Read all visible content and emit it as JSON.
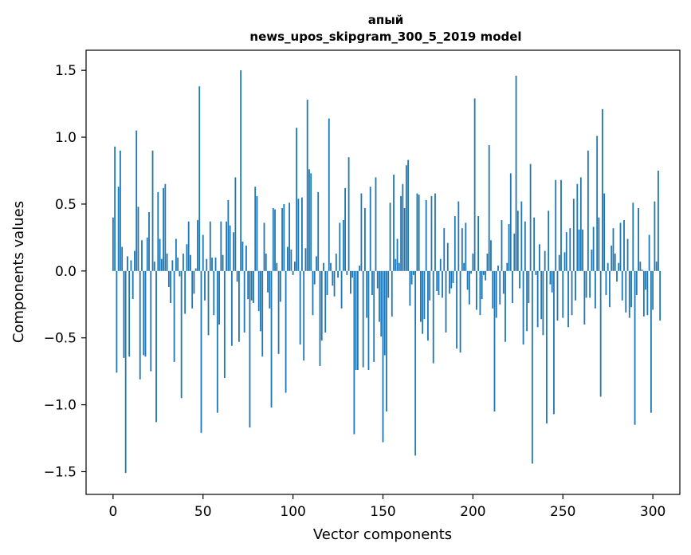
{
  "chart_data": {
    "type": "bar",
    "title": "апый",
    "subtitle": "news_upos_skipgram_300_5_2019 model",
    "xlabel": "Vector components",
    "ylabel": "Components values",
    "xlim": [
      -15,
      315
    ],
    "ylim": [
      -1.67,
      1.65
    ],
    "xticks": [
      0,
      50,
      100,
      150,
      200,
      250,
      300
    ],
    "xtick_labels": [
      "0",
      "50",
      "100",
      "150",
      "200",
      "250",
      "300"
    ],
    "yticks": [
      -1.5,
      -1.0,
      -0.5,
      0.0,
      0.5,
      1.0,
      1.5
    ],
    "ytick_labels": [
      "−1.5",
      "−1.0",
      "−0.5",
      "0.0",
      "0.5",
      "1.0",
      "1.5"
    ],
    "grid": false,
    "bar_color": "#1f77b4",
    "x_start": 0,
    "values": [
      0.4,
      0.93,
      -0.76,
      0.63,
      0.9,
      0.18,
      -0.65,
      -1.51,
      0.11,
      -0.64,
      0.08,
      -0.21,
      0.15,
      1.05,
      0.48,
      -0.81,
      0.23,
      -0.63,
      -0.64,
      0.25,
      0.44,
      -0.75,
      0.9,
      0.07,
      -1.13,
      0.59,
      0.24,
      0.09,
      0.62,
      0.65,
      0.13,
      -0.12,
      -0.24,
      0.08,
      -0.68,
      0.24,
      0.1,
      -0.04,
      -0.95,
      0.13,
      -0.32,
      0.2,
      0.37,
      0.12,
      -0.28,
      -0.17,
      0.02,
      0.38,
      1.38,
      -1.21,
      0.27,
      -0.22,
      0.09,
      -0.48,
      0.37,
      0.1,
      -0.33,
      0.1,
      -1.06,
      -0.4,
      0.37,
      0.12,
      -0.8,
      0.37,
      0.53,
      0.34,
      -0.56,
      0.29,
      0.7,
      -0.08,
      -0.53,
      1.5,
      0.22,
      -0.46,
      0.19,
      -0.21,
      -1.17,
      -0.22,
      -0.24,
      0.63,
      0.56,
      -0.3,
      -0.45,
      -0.64,
      0.36,
      0.13,
      -0.16,
      -0.28,
      -1.02,
      0.47,
      0.46,
      0.06,
      -0.62,
      -0.23,
      0.47,
      0.5,
      -0.91,
      0.18,
      0.51,
      0.16,
      -0.03,
      0.07,
      1.07,
      0.54,
      -0.55,
      0.55,
      -0.67,
      0.17,
      1.28,
      0.76,
      0.73,
      -0.33,
      -0.1,
      0.11,
      0.59,
      -0.71,
      -0.52,
      0.06,
      -0.46,
      -0.18,
      1.14,
      0.06,
      -0.11,
      -0.19,
      0.13,
      -0.05,
      0.36,
      -0.28,
      0.38,
      0.62,
      -0.03,
      0.85,
      -0.17,
      -0.05,
      -1.22,
      -0.74,
      -0.74,
      0.04,
      0.58,
      -0.72,
      0.47,
      -0.35,
      -0.74,
      0.63,
      -0.18,
      -0.68,
      0.7,
      -0.13,
      -0.38,
      -0.49,
      -1.28,
      -0.63,
      -1.05,
      -0.2,
      0.51,
      -0.34,
      0.72,
      0.09,
      0.24,
      0.06,
      0.56,
      0.65,
      0.47,
      0.79,
      0.83,
      -0.26,
      -0.1,
      -0.03,
      -1.38,
      0.58,
      0.57,
      -0.38,
      -0.47,
      -0.36,
      0.53,
      -0.52,
      -0.22,
      0.56,
      -0.69,
      0.58,
      -0.15,
      -0.18,
      0.09,
      -0.2,
      0.32,
      -0.46,
      0.21,
      -0.17,
      -0.13,
      -0.09,
      0.41,
      -0.58,
      0.52,
      -0.61,
      0.32,
      0.06,
      0.36,
      -0.14,
      -0.25,
      -0.02,
      0.13,
      1.29,
      -0.29,
      0.41,
      -0.33,
      -0.21,
      -0.03,
      -0.07,
      0.13,
      0.94,
      0.23,
      -0.28,
      -1.05,
      -0.35,
      0.04,
      -0.25,
      0.38,
      -0.17,
      -0.53,
      0.06,
      0.35,
      0.73,
      -0.24,
      0.28,
      1.46,
      0.45,
      -0.13,
      0.52,
      -0.55,
      0.37,
      -0.45,
      -0.24,
      0.8,
      -1.44,
      0.4,
      -0.03,
      -0.42,
      0.2,
      -0.36,
      -0.48,
      0.15,
      -1.14,
      0.45,
      -0.1,
      -0.16,
      -1.07,
      0.68,
      -0.37,
      0.12,
      0.68,
      -0.35,
      0.14,
      0.29,
      -0.42,
      0.32,
      -0.33,
      0.54,
      -0.22,
      0.65,
      0.31,
      0.7,
      0.31,
      -0.4,
      -0.2,
      0.9,
      -0.2,
      0.16,
      0.33,
      -0.28,
      1.01,
      0.4,
      -0.94,
      1.21,
      0.58,
      -0.18,
      0.06,
      -0.27,
      0.19,
      0.32,
      0.13,
      -0.08,
      0.06,
      0.36,
      -0.22,
      0.38,
      -0.31,
      0.24,
      -0.35,
      -0.27,
      0.51,
      -1.15,
      -0.18,
      0.47,
      0.07,
      0.01,
      -0.34,
      -0.14,
      -0.33,
      0.27,
      -1.06,
      -0.29,
      0.52,
      0.07,
      0.75,
      -0.37
    ]
  }
}
